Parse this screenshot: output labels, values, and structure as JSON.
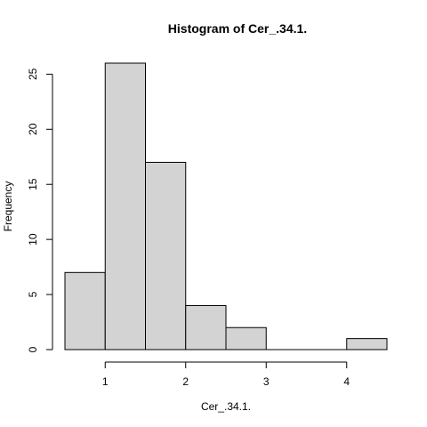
{
  "chart_data": {
    "type": "bar",
    "title": "Histogram of Cer_.34.1.",
    "xlabel": "Cer_.34.1.",
    "ylabel": "Frequency",
    "bins": [
      {
        "x0": 0.5,
        "x1": 1.0,
        "count": 7
      },
      {
        "x0": 1.0,
        "x1": 1.5,
        "count": 26
      },
      {
        "x0": 1.5,
        "x1": 2.0,
        "count": 17
      },
      {
        "x0": 2.0,
        "x1": 2.5,
        "count": 4
      },
      {
        "x0": 2.5,
        "x1": 3.0,
        "count": 2
      },
      {
        "x0": 3.0,
        "x1": 3.5,
        "count": 0
      },
      {
        "x0": 3.5,
        "x1": 4.0,
        "count": 0
      },
      {
        "x0": 4.0,
        "x1": 4.5,
        "count": 1
      }
    ],
    "x_ticks": [
      "1",
      "2",
      "3",
      "4"
    ],
    "y_ticks": [
      "0",
      "5",
      "10",
      "15",
      "20",
      "25"
    ],
    "xlim": [
      0.5,
      4.5
    ],
    "ylim": [
      0,
      26
    ],
    "bar_fill": "#d3d3d3",
    "bar_stroke": "#000000",
    "grid": false
  }
}
